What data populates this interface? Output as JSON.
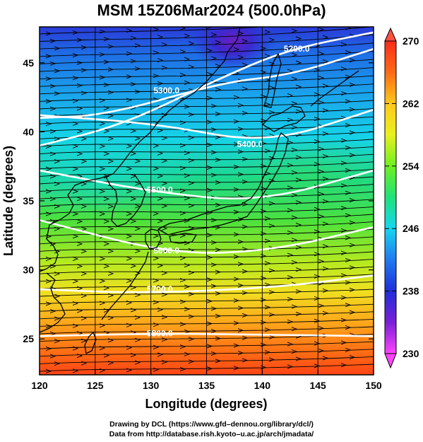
{
  "title": "MSM 15Z06Mar2024 (500.0hPa)",
  "map": {
    "xlabel": "Longitude (degrees)",
    "ylabel": "Latitude  (degrees)",
    "x_ticks": [
      120,
      125,
      130,
      135,
      140,
      145,
      150
    ],
    "y_ticks": [
      25,
      30,
      35,
      40,
      45
    ],
    "xlim": [
      120,
      150
    ],
    "ylim": [
      22.4,
      47.6
    ],
    "contour_labels": [
      "5200.0",
      "5300.0",
      "5400.0",
      "5500.0",
      "5600.0",
      "5700.0",
      "5800.0"
    ]
  },
  "colorbar": {
    "ticks": [
      230,
      238,
      246,
      254,
      262,
      270
    ],
    "range": [
      230,
      270
    ],
    "colors": [
      "#ff44ff",
      "#7a1fd6",
      "#1f2fd8",
      "#1f7af0",
      "#16d6f0",
      "#1ee27a",
      "#6ff020",
      "#e8f020",
      "#ffc81a",
      "#ff6a14",
      "#ff2a1a"
    ]
  },
  "credits": {
    "line1": "Drawing by DCL (https://www.gfd–dennou.org/library/dcl/)",
    "line2": "Data from http://database.rish.kyoto–u.ac.jp/arch/jmadata/"
  }
}
